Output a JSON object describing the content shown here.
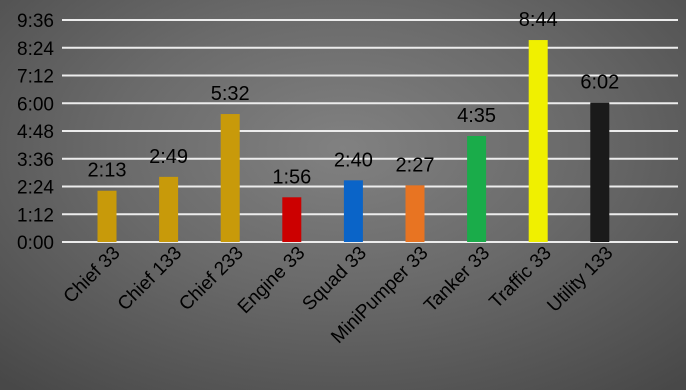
{
  "chart_data": {
    "type": "bar",
    "title": "",
    "xlabel": "",
    "ylabel": "",
    "categories": [
      "Chief 33",
      "Chief 133",
      "Chief 233",
      "Engine 33",
      "Squad 33",
      "MiniPumper 33",
      "Tanker 33",
      "Traffic 33",
      "Utility 133"
    ],
    "series": [
      {
        "values": [
          133,
          169,
          332,
          116,
          160,
          147,
          275,
          524,
          362
        ],
        "labels": [
          "2:13",
          "2:49",
          "5:32",
          "1:56",
          "2:40",
          "2:27",
          "4:35",
          "8:44",
          "6:02"
        ],
        "colors": [
          "#c89a0a",
          "#c89a0a",
          "#c89a0a",
          "#cc0000",
          "#0a64c8",
          "#e87422",
          "#1aac4a",
          "#f0f000",
          "#1a1a1a"
        ]
      }
    ],
    "y_unit": "minutes",
    "ylim": [
      0,
      576
    ],
    "yticks": [
      0,
      72,
      144,
      216,
      288,
      360,
      432,
      504,
      576
    ],
    "ytick_labels": [
      "0:00",
      "1:12",
      "2:24",
      "3:36",
      "4:48",
      "6:00",
      "7:12",
      "8:24",
      "9:36"
    ],
    "grid": true,
    "legend": "none"
  }
}
